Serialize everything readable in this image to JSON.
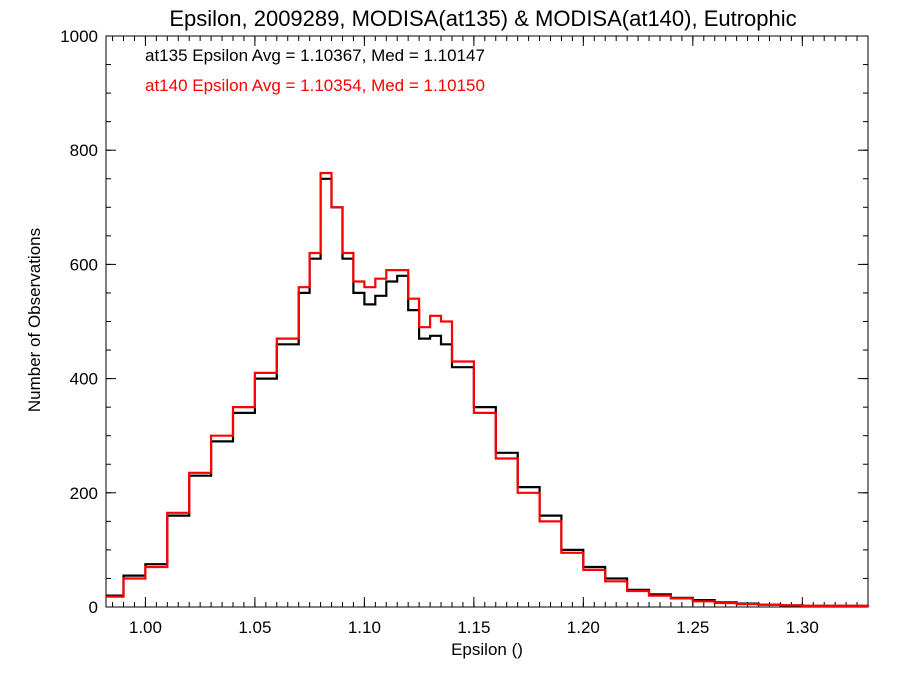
{
  "chart_data": {
    "type": "line",
    "step": true,
    "title": "Epsilon, 2009289, MODISA(at135) & MODISA(at140), Eutrophic",
    "xlabel": "Epsilon ()",
    "ylabel": "Number of Observations",
    "xlim": [
      0.982,
      1.33
    ],
    "ylim": [
      0,
      1000
    ],
    "xticks": [
      "1.00",
      "1.05",
      "1.10",
      "1.15",
      "1.20",
      "1.25",
      "1.30"
    ],
    "yticks": [
      "0",
      "200",
      "400",
      "600",
      "800",
      "1000"
    ],
    "annotations": [
      {
        "text": "at135 Epsilon Avg = 1.10367, Med = 1.10147",
        "color": "#000000"
      },
      {
        "text": "at140 Epsilon Avg = 1.10354, Med = 1.10150",
        "color": "#ff0000"
      }
    ],
    "series": [
      {
        "color": "#000000",
        "x": [
          0.982,
          0.99,
          1.0,
          1.01,
          1.02,
          1.03,
          1.04,
          1.05,
          1.06,
          1.07,
          1.075,
          1.08,
          1.085,
          1.09,
          1.095,
          1.1,
          1.105,
          1.11,
          1.115,
          1.12,
          1.125,
          1.13,
          1.135,
          1.14,
          1.15,
          1.16,
          1.17,
          1.18,
          1.19,
          1.2,
          1.21,
          1.22,
          1.23,
          1.24,
          1.25,
          1.26,
          1.27,
          1.28,
          1.29,
          1.3,
          1.31,
          1.33
        ],
        "y": [
          20,
          55,
          75,
          160,
          230,
          290,
          340,
          400,
          460,
          550,
          610,
          750,
          700,
          610,
          550,
          530,
          545,
          570,
          580,
          520,
          470,
          475,
          460,
          420,
          350,
          270,
          210,
          160,
          100,
          70,
          50,
          30,
          22,
          16,
          12,
          8,
          6,
          4,
          3,
          2,
          2,
          1
        ]
      },
      {
        "color": "#ff0000",
        "x": [
          0.982,
          0.99,
          1.0,
          1.01,
          1.02,
          1.03,
          1.04,
          1.05,
          1.06,
          1.07,
          1.075,
          1.08,
          1.085,
          1.09,
          1.095,
          1.1,
          1.105,
          1.11,
          1.115,
          1.12,
          1.125,
          1.13,
          1.135,
          1.14,
          1.15,
          1.16,
          1.17,
          1.18,
          1.19,
          1.2,
          1.21,
          1.22,
          1.23,
          1.24,
          1.25,
          1.26,
          1.27,
          1.28,
          1.29,
          1.3,
          1.31,
          1.33
        ],
        "y": [
          18,
          50,
          70,
          165,
          235,
          300,
          350,
          410,
          470,
          560,
          620,
          760,
          700,
          620,
          570,
          560,
          575,
          590,
          590,
          540,
          490,
          510,
          500,
          430,
          340,
          260,
          200,
          150,
          95,
          65,
          45,
          28,
          20,
          15,
          10,
          7,
          5,
          4,
          3,
          2,
          2,
          1
        ]
      }
    ]
  }
}
